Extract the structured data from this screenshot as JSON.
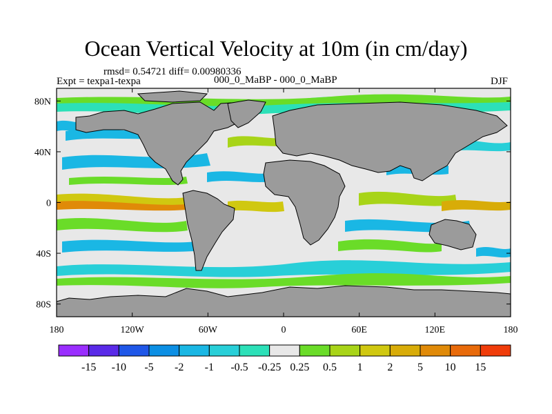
{
  "title": "Ocean Vertical Velocity at 10m (in cm/day)",
  "stats": "rmsd= 0.54721 diff= 0.00980336",
  "expt": "Expt = texpa1-texpa",
  "case": "000_0_MaBP - 000_0_MaBP",
  "season": "DJF",
  "map": {
    "projection": "cylindrical equidistant",
    "lon_range": [
      -180,
      180
    ],
    "lat_range": [
      -90,
      90
    ],
    "land_color": "#9b9b9b",
    "lon_ticks": [
      {
        "value": -180,
        "label": "180"
      },
      {
        "value": -120,
        "label": "120W"
      },
      {
        "value": -60,
        "label": "60W"
      },
      {
        "value": 0,
        "label": "0"
      },
      {
        "value": 60,
        "label": "60E"
      },
      {
        "value": 120,
        "label": "120E"
      },
      {
        "value": 180,
        "label": "180"
      }
    ],
    "lat_ticks": [
      {
        "value": 80,
        "label": "80N"
      },
      {
        "value": 40,
        "label": "40N"
      },
      {
        "value": 0,
        "label": "0"
      },
      {
        "value": -40,
        "label": "40S"
      },
      {
        "value": -80,
        "label": "80S"
      }
    ]
  },
  "colorbar": {
    "colors": [
      "#9a2eff",
      "#5a2ae8",
      "#1f57e8",
      "#0c8fe4",
      "#1ab7e4",
      "#28cfd8",
      "#2ce0b8",
      "#e8e8e8",
      "#6adc28",
      "#a8d418",
      "#d0c810",
      "#d8ac08",
      "#e08a08",
      "#e86a0a",
      "#f03c0a"
    ],
    "labels": [
      "-15",
      "-10",
      "-5",
      "-2",
      "-1",
      "-0.5",
      "-0.25",
      "0.25",
      "0.5",
      "1",
      "2",
      "5",
      "10",
      "15"
    ]
  }
}
